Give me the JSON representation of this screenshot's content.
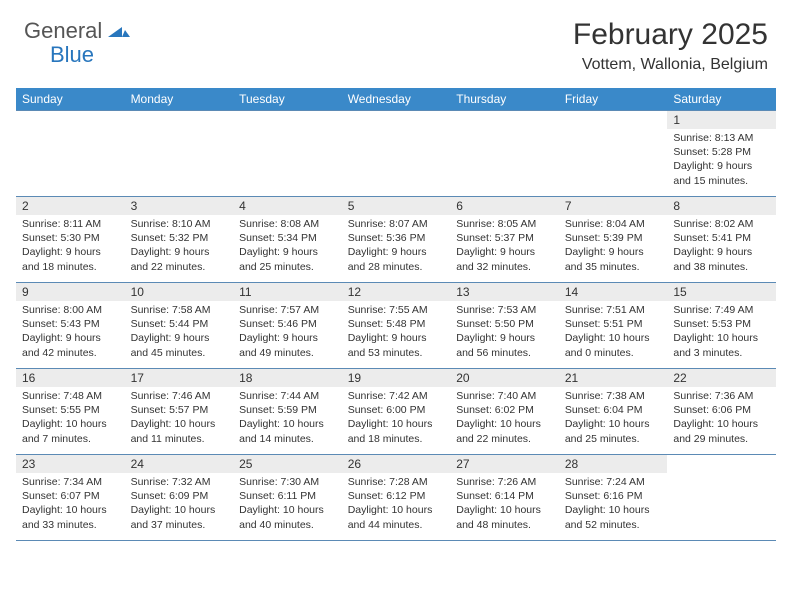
{
  "logo": {
    "general": "General",
    "blue": "Blue"
  },
  "title": "February 2025",
  "location": "Vottem, Wallonia, Belgium",
  "colors": {
    "header_bg": "#3a89c9",
    "border": "#5b8ab5",
    "daynum_bg": "#ececec",
    "text": "#333333",
    "logo_blue": "#2876bd"
  },
  "weekdays": [
    "Sunday",
    "Monday",
    "Tuesday",
    "Wednesday",
    "Thursday",
    "Friday",
    "Saturday"
  ],
  "weeks": [
    [
      {
        "n": "",
        "sr": "",
        "ss": "",
        "dl": ""
      },
      {
        "n": "",
        "sr": "",
        "ss": "",
        "dl": ""
      },
      {
        "n": "",
        "sr": "",
        "ss": "",
        "dl": ""
      },
      {
        "n": "",
        "sr": "",
        "ss": "",
        "dl": ""
      },
      {
        "n": "",
        "sr": "",
        "ss": "",
        "dl": ""
      },
      {
        "n": "",
        "sr": "",
        "ss": "",
        "dl": ""
      },
      {
        "n": "1",
        "sr": "Sunrise: 8:13 AM",
        "ss": "Sunset: 5:28 PM",
        "dl": "Daylight: 9 hours and 15 minutes."
      }
    ],
    [
      {
        "n": "2",
        "sr": "Sunrise: 8:11 AM",
        "ss": "Sunset: 5:30 PM",
        "dl": "Daylight: 9 hours and 18 minutes."
      },
      {
        "n": "3",
        "sr": "Sunrise: 8:10 AM",
        "ss": "Sunset: 5:32 PM",
        "dl": "Daylight: 9 hours and 22 minutes."
      },
      {
        "n": "4",
        "sr": "Sunrise: 8:08 AM",
        "ss": "Sunset: 5:34 PM",
        "dl": "Daylight: 9 hours and 25 minutes."
      },
      {
        "n": "5",
        "sr": "Sunrise: 8:07 AM",
        "ss": "Sunset: 5:36 PM",
        "dl": "Daylight: 9 hours and 28 minutes."
      },
      {
        "n": "6",
        "sr": "Sunrise: 8:05 AM",
        "ss": "Sunset: 5:37 PM",
        "dl": "Daylight: 9 hours and 32 minutes."
      },
      {
        "n": "7",
        "sr": "Sunrise: 8:04 AM",
        "ss": "Sunset: 5:39 PM",
        "dl": "Daylight: 9 hours and 35 minutes."
      },
      {
        "n": "8",
        "sr": "Sunrise: 8:02 AM",
        "ss": "Sunset: 5:41 PM",
        "dl": "Daylight: 9 hours and 38 minutes."
      }
    ],
    [
      {
        "n": "9",
        "sr": "Sunrise: 8:00 AM",
        "ss": "Sunset: 5:43 PM",
        "dl": "Daylight: 9 hours and 42 minutes."
      },
      {
        "n": "10",
        "sr": "Sunrise: 7:58 AM",
        "ss": "Sunset: 5:44 PM",
        "dl": "Daylight: 9 hours and 45 minutes."
      },
      {
        "n": "11",
        "sr": "Sunrise: 7:57 AM",
        "ss": "Sunset: 5:46 PM",
        "dl": "Daylight: 9 hours and 49 minutes."
      },
      {
        "n": "12",
        "sr": "Sunrise: 7:55 AM",
        "ss": "Sunset: 5:48 PM",
        "dl": "Daylight: 9 hours and 53 minutes."
      },
      {
        "n": "13",
        "sr": "Sunrise: 7:53 AM",
        "ss": "Sunset: 5:50 PM",
        "dl": "Daylight: 9 hours and 56 minutes."
      },
      {
        "n": "14",
        "sr": "Sunrise: 7:51 AM",
        "ss": "Sunset: 5:51 PM",
        "dl": "Daylight: 10 hours and 0 minutes."
      },
      {
        "n": "15",
        "sr": "Sunrise: 7:49 AM",
        "ss": "Sunset: 5:53 PM",
        "dl": "Daylight: 10 hours and 3 minutes."
      }
    ],
    [
      {
        "n": "16",
        "sr": "Sunrise: 7:48 AM",
        "ss": "Sunset: 5:55 PM",
        "dl": "Daylight: 10 hours and 7 minutes."
      },
      {
        "n": "17",
        "sr": "Sunrise: 7:46 AM",
        "ss": "Sunset: 5:57 PM",
        "dl": "Daylight: 10 hours and 11 minutes."
      },
      {
        "n": "18",
        "sr": "Sunrise: 7:44 AM",
        "ss": "Sunset: 5:59 PM",
        "dl": "Daylight: 10 hours and 14 minutes."
      },
      {
        "n": "19",
        "sr": "Sunrise: 7:42 AM",
        "ss": "Sunset: 6:00 PM",
        "dl": "Daylight: 10 hours and 18 minutes."
      },
      {
        "n": "20",
        "sr": "Sunrise: 7:40 AM",
        "ss": "Sunset: 6:02 PM",
        "dl": "Daylight: 10 hours and 22 minutes."
      },
      {
        "n": "21",
        "sr": "Sunrise: 7:38 AM",
        "ss": "Sunset: 6:04 PM",
        "dl": "Daylight: 10 hours and 25 minutes."
      },
      {
        "n": "22",
        "sr": "Sunrise: 7:36 AM",
        "ss": "Sunset: 6:06 PM",
        "dl": "Daylight: 10 hours and 29 minutes."
      }
    ],
    [
      {
        "n": "23",
        "sr": "Sunrise: 7:34 AM",
        "ss": "Sunset: 6:07 PM",
        "dl": "Daylight: 10 hours and 33 minutes."
      },
      {
        "n": "24",
        "sr": "Sunrise: 7:32 AM",
        "ss": "Sunset: 6:09 PM",
        "dl": "Daylight: 10 hours and 37 minutes."
      },
      {
        "n": "25",
        "sr": "Sunrise: 7:30 AM",
        "ss": "Sunset: 6:11 PM",
        "dl": "Daylight: 10 hours and 40 minutes."
      },
      {
        "n": "26",
        "sr": "Sunrise: 7:28 AM",
        "ss": "Sunset: 6:12 PM",
        "dl": "Daylight: 10 hours and 44 minutes."
      },
      {
        "n": "27",
        "sr": "Sunrise: 7:26 AM",
        "ss": "Sunset: 6:14 PM",
        "dl": "Daylight: 10 hours and 48 minutes."
      },
      {
        "n": "28",
        "sr": "Sunrise: 7:24 AM",
        "ss": "Sunset: 6:16 PM",
        "dl": "Daylight: 10 hours and 52 minutes."
      },
      {
        "n": "",
        "sr": "",
        "ss": "",
        "dl": ""
      }
    ]
  ]
}
